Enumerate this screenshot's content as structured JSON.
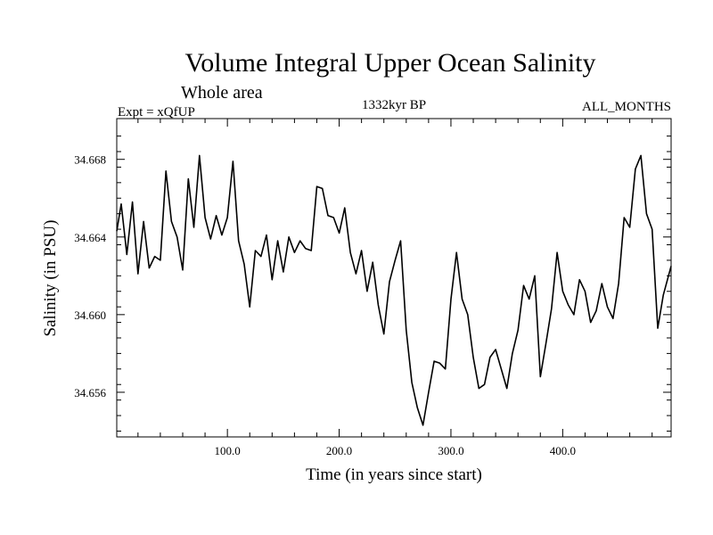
{
  "chart_data": {
    "type": "line",
    "title": "Volume Integral Upper Ocean Salinity",
    "subtitle": "Whole area",
    "experiment": "Expt = xQfUP",
    "period": "1332kyr BP",
    "months": "ALL_MONTHS",
    "xlabel": "Time (in years since start)",
    "ylabel": "Salinity (in PSU)",
    "xlim": [
      1,
      497
    ],
    "ylim": [
      34.6537,
      34.6701
    ],
    "x_ticks": [
      100,
      200,
      300,
      400
    ],
    "x_tick_labels": [
      "100.0",
      "200.0",
      "300.0",
      "400.0"
    ],
    "y_ticks": [
      34.656,
      34.66,
      34.664,
      34.668
    ],
    "y_tick_labels": [
      "34.656",
      "34.660",
      "34.664",
      "34.668"
    ],
    "series": [
      {
        "name": "Salinity",
        "x": [
          1,
          5,
          10,
          15,
          20,
          25,
          30,
          35,
          40,
          45,
          50,
          55,
          60,
          65,
          70,
          75,
          80,
          85,
          90,
          95,
          100,
          105,
          110,
          115,
          120,
          125,
          130,
          135,
          140,
          145,
          150,
          155,
          160,
          165,
          170,
          175,
          180,
          185,
          190,
          195,
          200,
          205,
          210,
          215,
          220,
          225,
          230,
          235,
          240,
          245,
          250,
          255,
          260,
          265,
          270,
          275,
          280,
          285,
          290,
          295,
          300,
          305,
          310,
          315,
          320,
          325,
          330,
          335,
          340,
          345,
          350,
          355,
          360,
          365,
          370,
          375,
          380,
          385,
          390,
          395,
          400,
          405,
          410,
          415,
          420,
          425,
          430,
          435,
          440,
          445,
          450,
          455,
          460,
          465,
          470,
          475,
          480,
          485,
          490,
          497
        ],
        "values": [
          34.6643,
          34.6657,
          34.6631,
          34.6658,
          34.6621,
          34.6648,
          34.6624,
          34.663,
          34.6628,
          34.6674,
          34.6648,
          34.664,
          34.6623,
          34.667,
          34.6645,
          34.6682,
          34.665,
          34.6639,
          34.6651,
          34.6641,
          34.665,
          34.6679,
          34.6638,
          34.6626,
          34.6604,
          34.6633,
          34.663,
          34.6641,
          34.6618,
          34.6638,
          34.6622,
          34.664,
          34.6632,
          34.6638,
          34.6634,
          34.6633,
          34.6666,
          34.6665,
          34.6651,
          34.665,
          34.6642,
          34.6655,
          34.6632,
          34.6621,
          34.6633,
          34.6612,
          34.6627,
          34.6605,
          34.659,
          34.6617,
          34.6628,
          34.6638,
          34.6592,
          34.6565,
          34.6552,
          34.6543,
          34.656,
          34.6576,
          34.6575,
          34.6572,
          34.6608,
          34.6632,
          34.6608,
          34.66,
          34.6578,
          34.6562,
          34.6564,
          34.6578,
          34.6582,
          34.6572,
          34.6562,
          34.658,
          34.6592,
          34.6615,
          34.6608,
          34.662,
          34.6568,
          34.6585,
          34.6603,
          34.6632,
          34.6612,
          34.6605,
          34.66,
          34.6618,
          34.6612,
          34.6596,
          34.6602,
          34.6616,
          34.6604,
          34.6598,
          34.6616,
          34.665,
          34.6645,
          34.6675,
          34.6682,
          34.6652,
          34.6644,
          34.6593,
          34.661,
          34.6625
        ]
      }
    ]
  }
}
